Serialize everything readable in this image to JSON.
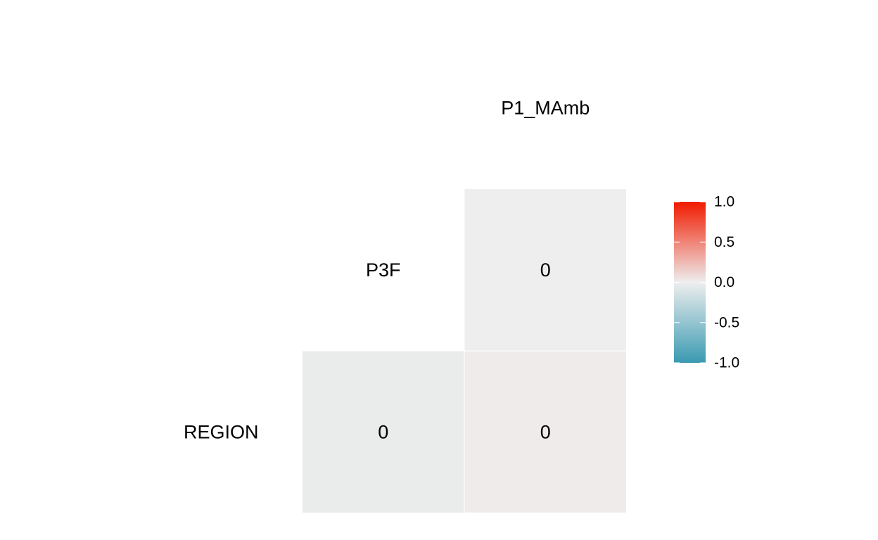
{
  "chart_data": {
    "type": "heatmap",
    "variables": [
      "REGION",
      "P3F",
      "P1_MAmb"
    ],
    "cells": [
      {
        "row": "P3F",
        "col": "P1_MAmb",
        "value": 0,
        "label": "0",
        "color": "#eeeeee"
      },
      {
        "row": "REGION",
        "col": "P3F",
        "value": 0,
        "label": "0",
        "color": "#eaebeb"
      },
      {
        "row": "REGION",
        "col": "P1_MAmb",
        "value": 0,
        "label": "0",
        "color": "#efebea"
      }
    ],
    "legend": {
      "min": -1.0,
      "max": 1.0,
      "placement": "right",
      "ticks": [
        {
          "value": 1.0,
          "label": "1.0"
        },
        {
          "value": 0.5,
          "label": "0.5"
        },
        {
          "value": 0.0,
          "label": "0.0"
        },
        {
          "value": -0.5,
          "label": "-0.5"
        },
        {
          "value": -1.0,
          "label": "-1.0"
        }
      ],
      "colors": {
        "low": "#3a9ab2",
        "mid": "#eeeeee",
        "high": "#f11a00"
      }
    },
    "grid": false
  }
}
